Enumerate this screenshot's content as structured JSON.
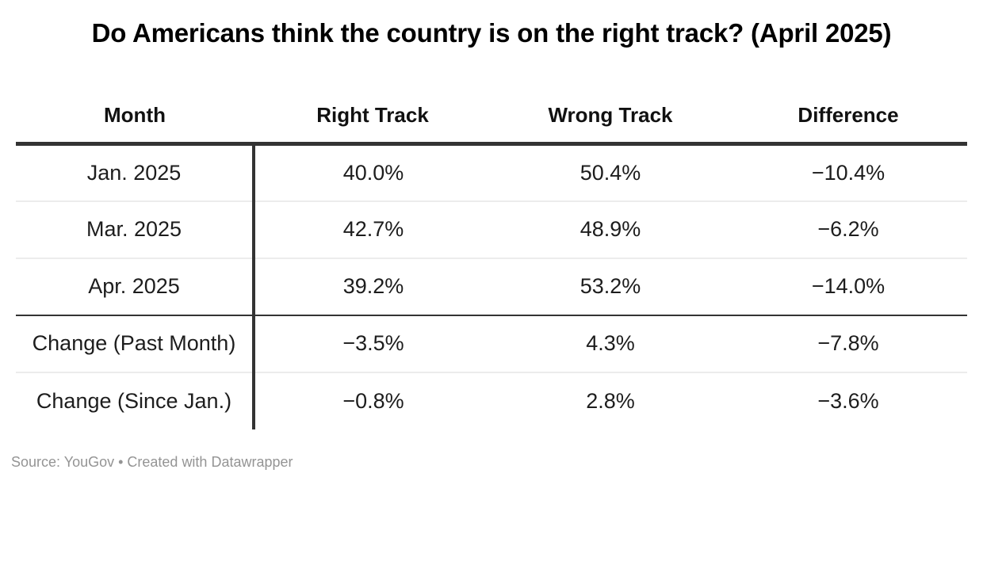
{
  "title": "Do Americans think the country is on the right track? (April 2025)",
  "table": {
    "columns": [
      "Month",
      "Right Track",
      "Wrong Track",
      "Difference"
    ],
    "rows": [
      {
        "cells": [
          "Jan. 2025",
          "40.0%",
          "50.4%",
          "−10.4%"
        ]
      },
      {
        "cells": [
          "Mar. 2025",
          "42.7%",
          "48.9%",
          "−6.2%"
        ]
      },
      {
        "cells": [
          "Apr. 2025",
          "39.2%",
          "53.2%",
          "−14.0%"
        ]
      },
      {
        "cells": [
          "Change (Past Month)",
          "−3.5%",
          "4.3%",
          "−7.8%"
        ]
      },
      {
        "cells": [
          "Change (Since Jan.)",
          "−0.8%",
          "2.8%",
          "−3.6%"
        ]
      }
    ]
  },
  "footer": {
    "text": "Source: YouGov • Created with Datawrapper"
  },
  "colors": {
    "title_text": "#000000",
    "cell_text": "#1d1d1d",
    "border_dark": "#333333",
    "border_light": "#ececec",
    "footer_text": "#949494",
    "background": "#ffffff"
  },
  "chart_data": {
    "type": "table",
    "title": "Do Americans think the country is on the right track? (April 2025)",
    "columns": [
      "Month",
      "Right Track",
      "Wrong Track",
      "Difference"
    ],
    "rows": [
      [
        "Jan. 2025",
        "40.0%",
        "50.4%",
        "−10.4%"
      ],
      [
        "Mar. 2025",
        "42.7%",
        "48.9%",
        "−6.2%"
      ],
      [
        "Apr. 2025",
        "39.2%",
        "53.2%",
        "−14.0%"
      ],
      [
        "Change (Past Month)",
        "−3.5%",
        "4.3%",
        "−7.8%"
      ],
      [
        "Change (Since Jan.)",
        "−0.8%",
        "2.8%",
        "−3.6%"
      ]
    ],
    "categories": [
      "Jan. 2025",
      "Mar. 2025",
      "Apr. 2025"
    ],
    "series": [
      {
        "name": "Right Track",
        "values": [
          40.0,
          42.7,
          39.2
        ]
      },
      {
        "name": "Wrong Track",
        "values": [
          50.4,
          48.9,
          53.2
        ]
      },
      {
        "name": "Difference",
        "values": [
          -10.4,
          -6.2,
          -14.0
        ]
      }
    ],
    "change_rows": [
      {
        "name": "Change (Past Month)",
        "values": [
          -3.5,
          4.3,
          -7.8
        ]
      },
      {
        "name": "Change (Since Jan.)",
        "values": [
          -0.8,
          2.8,
          -3.6
        ]
      }
    ],
    "source": "YouGov",
    "created_with": "Datawrapper"
  }
}
